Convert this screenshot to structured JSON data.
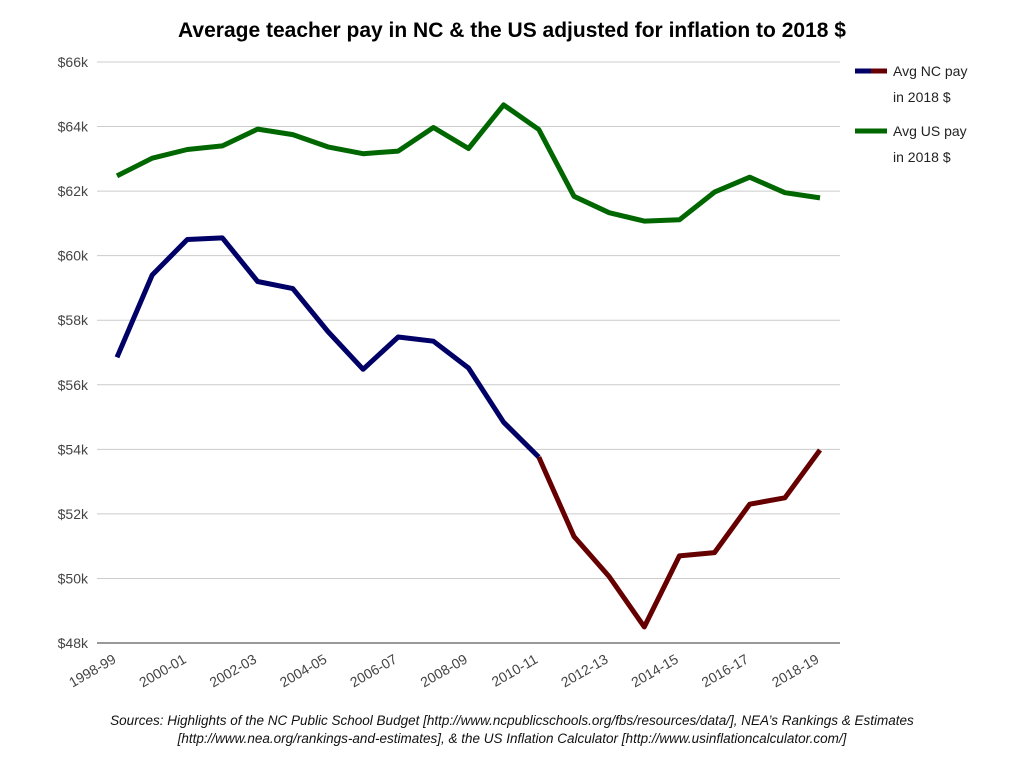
{
  "chart_data": {
    "type": "line",
    "title": "Average teacher pay in NC & the US adjusted for inflation to 2018 $",
    "x": [
      "1998-99",
      "1999-00",
      "2000-01",
      "2001-02",
      "2002-03",
      "2003-04",
      "2004-05",
      "2005-06",
      "2006-07",
      "2007-08",
      "2008-09",
      "2009-10",
      "2010-11",
      "2011-12",
      "2012-13",
      "2013-14",
      "2014-15",
      "2015-16",
      "2016-17",
      "2017-18",
      "2018-19"
    ],
    "x_tick_labels": [
      "1998-99",
      "2000-01",
      "2002-03",
      "2004-05",
      "2006-07",
      "2008-09",
      "2010-11",
      "2012-13",
      "2014-15",
      "2016-17",
      "2018-19"
    ],
    "ylim": [
      48000,
      66000
    ],
    "y_ticks": [
      48000,
      50000,
      52000,
      54000,
      56000,
      58000,
      60000,
      62000,
      64000,
      66000
    ],
    "y_tick_labels": [
      "$48k",
      "$50k",
      "$52k",
      "$54k",
      "$56k",
      "$58k",
      "$60k",
      "$62k",
      "$64k",
      "$66k"
    ],
    "grid": true,
    "legend_position": "right",
    "series": [
      {
        "legend_lines": [
          "Avg NC pay",
          "in 2018 $"
        ],
        "values": [
          56850,
          59400,
          60500,
          60550,
          59200,
          58980,
          57650,
          56480,
          57480,
          57350,
          56520,
          54840,
          53760,
          51300,
          50060,
          48500,
          50700,
          50800,
          52300,
          52500,
          53980
        ],
        "color": "#000066",
        "color_after_2010_11": "#660000"
      },
      {
        "legend_lines": [
          "Avg US pay",
          "in 2018 $"
        ],
        "values": [
          62470,
          63020,
          63290,
          63400,
          63920,
          63750,
          63370,
          63160,
          63240,
          63970,
          63320,
          64670,
          63910,
          61840,
          61330,
          61070,
          61110,
          61970,
          62430,
          61950,
          61790
        ],
        "color": "#006600"
      }
    ]
  },
  "sources": {
    "line1": "Sources: Highlights of the NC Public School Budget [http://www.ncpublicschools.org/fbs/resources/data/], NEA’s Rankings & Estimates",
    "line2": "[http://www.nea.org/rankings-and-estimates], & the US Inflation Calculator [http://www.usinflationcalculator.com/]"
  }
}
